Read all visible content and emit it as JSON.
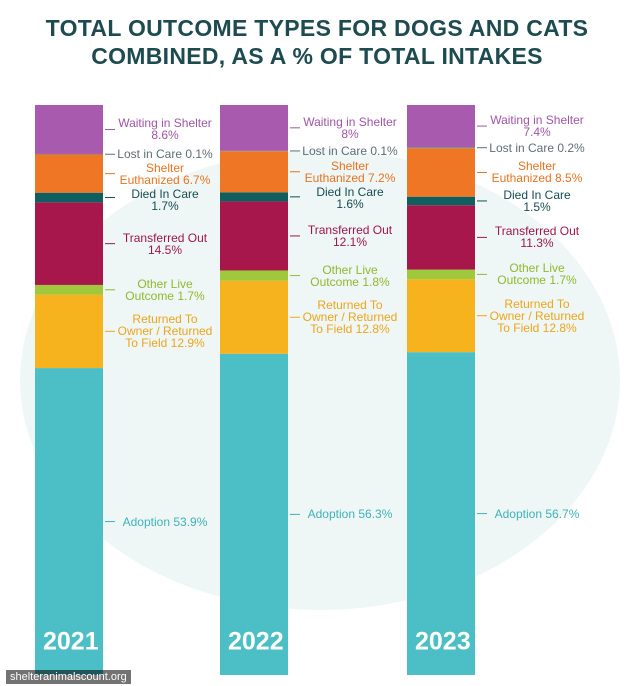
{
  "chart_data": {
    "type": "stacked_bar",
    "title": "TOTAL OUTCOME TYPES FOR DOGS AND CATS COMBINED, AS A % OF TOTAL INTAKES",
    "source": "shelteranimalscount.org",
    "categories": [
      "2021",
      "2022",
      "2023"
    ],
    "series": [
      {
        "name": "Adoption",
        "color": "#4bbfc5",
        "label_color": "#3fb3b9",
        "values": [
          53.9,
          56.3,
          56.7
        ],
        "value_labels": [
          "53.9%",
          "56.3%",
          "56.7%"
        ]
      },
      {
        "name": "Returned To Owner / Returned To Field",
        "color": "#f7b31d",
        "label_color": "#eea51a",
        "values": [
          12.9,
          12.8,
          12.8
        ],
        "value_labels": [
          "12.9%",
          "12.8%",
          "12.8%"
        ]
      },
      {
        "name": "Other Live Outcome",
        "color": "#a0c83c",
        "label_color": "#8fba2f",
        "values": [
          1.7,
          1.8,
          1.7
        ],
        "value_labels": [
          "1.7%",
          "1.8%",
          "1.7%"
        ]
      },
      {
        "name": "Transferred Out",
        "color": "#a8174b",
        "label_color": "#a0164a",
        "values": [
          14.5,
          12.1,
          11.3
        ],
        "value_labels": [
          "14.5%",
          "12.1%",
          "11.3%"
        ]
      },
      {
        "name": "Died In Care",
        "color": "#0f5f60",
        "label_color": "#174c52",
        "values": [
          1.7,
          1.6,
          1.5
        ],
        "value_labels": [
          "1.7%",
          "1.6%",
          "1.5%"
        ]
      },
      {
        "name": "Shelter Euthanized",
        "color": "#ef7625",
        "label_color": "#e9731f",
        "values": [
          6.7,
          7.2,
          8.5
        ],
        "value_labels": [
          "6.7%",
          "7.2%",
          "8.5%"
        ]
      },
      {
        "name": "Lost in Care",
        "color": "#7d8070",
        "label_color": "#5f6e74",
        "values": [
          0.1,
          0.1,
          0.2
        ],
        "value_labels": [
          "0.1%",
          "0.1%",
          "0.2%"
        ]
      },
      {
        "name": "Waiting in Shelter",
        "color": "#a85bae",
        "label_color": "#a055a8",
        "values": [
          8.6,
          8,
          7.4
        ],
        "value_labels": [
          "8.6%",
          "8%",
          "7.4%"
        ]
      }
    ]
  }
}
